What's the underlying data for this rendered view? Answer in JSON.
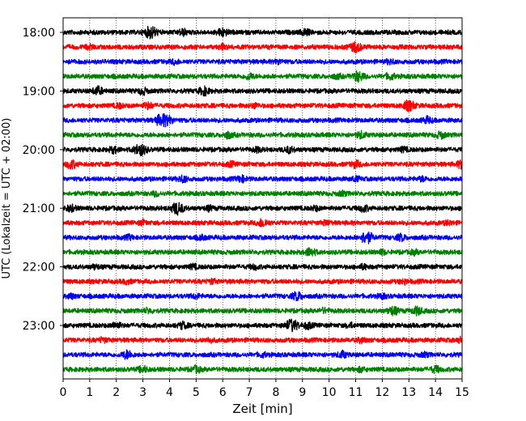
{
  "chart_data": {
    "type": "line",
    "title": "",
    "xlabel": "Zeit  [min]",
    "ylabel": "UTC (Lokalzeit = UTC + 02:00)",
    "xlim": [
      0,
      15
    ],
    "x_ticks": [
      "0",
      "1",
      "2",
      "3",
      "4",
      "5",
      "6",
      "7",
      "8",
      "9",
      "10",
      "11",
      "12",
      "13",
      "14",
      "15"
    ],
    "y_ticks": [
      "18:00",
      "19:00",
      "20:00",
      "21:00",
      "22:00",
      "23:00"
    ],
    "grid": "vertical dotted at each minute",
    "legend": "none",
    "trace_interval_min": 15,
    "trace_colors": [
      "#000000",
      "#ff0000",
      "#0000ff",
      "#008000"
    ],
    "traces": [
      {
        "start": "18:00",
        "events": [
          [
            3.3,
            6
          ],
          [
            4.5,
            3
          ],
          [
            6.0,
            4
          ],
          [
            9.1,
            3
          ]
        ]
      },
      {
        "start": "18:15",
        "events": [
          [
            1.0,
            2
          ],
          [
            6.0,
            2
          ],
          [
            11.0,
            5
          ]
        ]
      },
      {
        "start": "18:30",
        "events": [
          [
            4.2,
            2
          ],
          [
            8.1,
            2
          ],
          [
            12.3,
            2
          ]
        ]
      },
      {
        "start": "18:45",
        "events": [
          [
            7.0,
            3
          ],
          [
            10.3,
            2
          ],
          [
            11.1,
            5
          ],
          [
            12.3,
            3
          ]
        ]
      },
      {
        "start": "19:00",
        "events": [
          [
            1.3,
            4
          ],
          [
            3.0,
            3
          ],
          [
            5.3,
            4
          ]
        ]
      },
      {
        "start": "19:15",
        "events": [
          [
            2.1,
            2
          ],
          [
            3.2,
            3
          ],
          [
            7.2,
            2
          ],
          [
            13.0,
            5
          ]
        ]
      },
      {
        "start": "19:30",
        "events": [
          [
            3.7,
            6
          ],
          [
            4.0,
            3
          ],
          [
            13.7,
            3
          ]
        ]
      },
      {
        "start": "19:45",
        "events": [
          [
            6.2,
            3
          ],
          [
            11.2,
            3
          ],
          [
            14.2,
            3
          ]
        ]
      },
      {
        "start": "20:00",
        "events": [
          [
            1.9,
            3
          ],
          [
            2.9,
            6
          ],
          [
            7.3,
            2
          ],
          [
            8.5,
            3
          ],
          [
            12.8,
            2
          ]
        ]
      },
      {
        "start": "20:15",
        "events": [
          [
            0.3,
            4
          ],
          [
            6.3,
            2
          ],
          [
            11.0,
            3
          ],
          [
            15.0,
            4
          ]
        ]
      },
      {
        "start": "20:30",
        "events": [
          [
            4.5,
            3
          ],
          [
            6.7,
            3
          ],
          [
            11.0,
            2
          ],
          [
            13.5,
            2
          ]
        ]
      },
      {
        "start": "20:45",
        "events": [
          [
            3.5,
            2
          ],
          [
            10.5,
            2
          ]
        ]
      },
      {
        "start": "21:00",
        "events": [
          [
            0.3,
            3
          ],
          [
            4.3,
            6
          ],
          [
            5.5,
            2
          ],
          [
            9.5,
            2
          ],
          [
            11.3,
            3
          ]
        ]
      },
      {
        "start": "21:15",
        "events": [
          [
            3.0,
            2
          ],
          [
            7.5,
            4
          ],
          [
            9.9,
            2
          ],
          [
            14.5,
            2
          ]
        ]
      },
      {
        "start": "21:30",
        "events": [
          [
            2.5,
            2
          ],
          [
            5.2,
            2
          ],
          [
            11.4,
            6
          ],
          [
            12.7,
            3
          ]
        ]
      },
      {
        "start": "21:45",
        "events": [
          [
            9.3,
            4
          ],
          [
            12.0,
            2
          ],
          [
            13.2,
            2
          ]
        ]
      },
      {
        "start": "22:00",
        "events": [
          [
            1.2,
            2
          ],
          [
            4.9,
            2
          ],
          [
            7.2,
            2
          ],
          [
            11.3,
            2
          ]
        ]
      },
      {
        "start": "22:15",
        "events": [
          [
            2.4,
            2
          ],
          [
            5.6,
            2
          ],
          [
            12.8,
            2
          ]
        ]
      },
      {
        "start": "22:30",
        "events": [
          [
            0.3,
            2
          ],
          [
            5.0,
            2
          ],
          [
            8.8,
            4
          ],
          [
            12.0,
            2
          ]
        ]
      },
      {
        "start": "22:45",
        "events": [
          [
            3.2,
            2
          ],
          [
            9.8,
            2
          ],
          [
            12.4,
            4
          ],
          [
            13.3,
            4
          ]
        ]
      },
      {
        "start": "23:00",
        "events": [
          [
            2.0,
            3
          ],
          [
            4.5,
            3
          ],
          [
            8.6,
            6
          ],
          [
            9.2,
            3
          ],
          [
            10.8,
            2
          ]
        ]
      },
      {
        "start": "23:15",
        "events": [
          [
            1.5,
            2
          ],
          [
            5.5,
            2
          ],
          [
            11.2,
            2
          ],
          [
            15.0,
            3
          ]
        ]
      },
      {
        "start": "23:30",
        "events": [
          [
            2.4,
            4
          ],
          [
            7.5,
            2
          ],
          [
            10.5,
            3
          ],
          [
            13.6,
            2
          ]
        ]
      },
      {
        "start": "23:45",
        "events": [
          [
            3.0,
            3
          ],
          [
            5.0,
            3
          ],
          [
            11.2,
            2
          ],
          [
            14.0,
            3
          ]
        ]
      }
    ]
  }
}
